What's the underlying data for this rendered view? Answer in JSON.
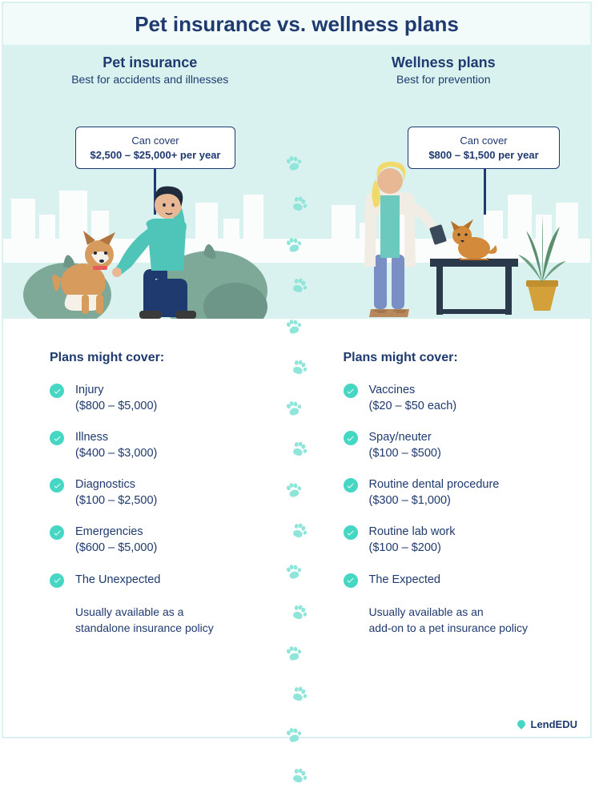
{
  "title": "Pet insurance vs. wellness plans",
  "colors": {
    "primary_text": "#1f3a6e",
    "accent_mint": "#d9f2ef",
    "checkmark_bg": "#45d6c4",
    "paw_color": "#8fe5da",
    "skyline_white": "#ffffff",
    "sign_border": "#1f3a6e",
    "title_band_bg": "#f3fbfa"
  },
  "left": {
    "heading": "Pet insurance",
    "subheading": "Best for accidents and illnesses",
    "sign_line1": "Can cover",
    "sign_line2": "$2,500 – $25,000+ per year",
    "illustration": "man-kneeling-with-dog",
    "cover_heading": "Plans might cover:",
    "items": [
      {
        "label": "Injury",
        "price": "($800 – $5,000)"
      },
      {
        "label": "Illness",
        "price": "($400 – $3,000)"
      },
      {
        "label": "Diagnostics",
        "price": "($100 – $2,500)"
      },
      {
        "label": "Emergencies",
        "price": "($600 – $5,000)"
      },
      {
        "label": "The Unexpected",
        "price": ""
      }
    ],
    "availability": "Usually available as a\nstandalone insurance policy"
  },
  "right": {
    "heading": "Wellness plans",
    "subheading": "Best for prevention",
    "sign_line1": "Can cover",
    "sign_line2": "$800 – $1,500 per year",
    "illustration": "vet-with-cat-on-table",
    "cover_heading": "Plans might cover:",
    "items": [
      {
        "label": "Vaccines",
        "price": "($20 – $50 each)"
      },
      {
        "label": "Spay/neuter",
        "price": "($100 – $500)"
      },
      {
        "label": "Routine dental procedure",
        "price": "($300 – $1,000)"
      },
      {
        "label": "Routine lab work",
        "price": "($100 – $200)"
      },
      {
        "label": "The Expected",
        "price": ""
      }
    ],
    "availability": "Usually available as an\nadd-on to a pet insurance policy"
  },
  "paw_count": 16,
  "brand": "LendEDU"
}
